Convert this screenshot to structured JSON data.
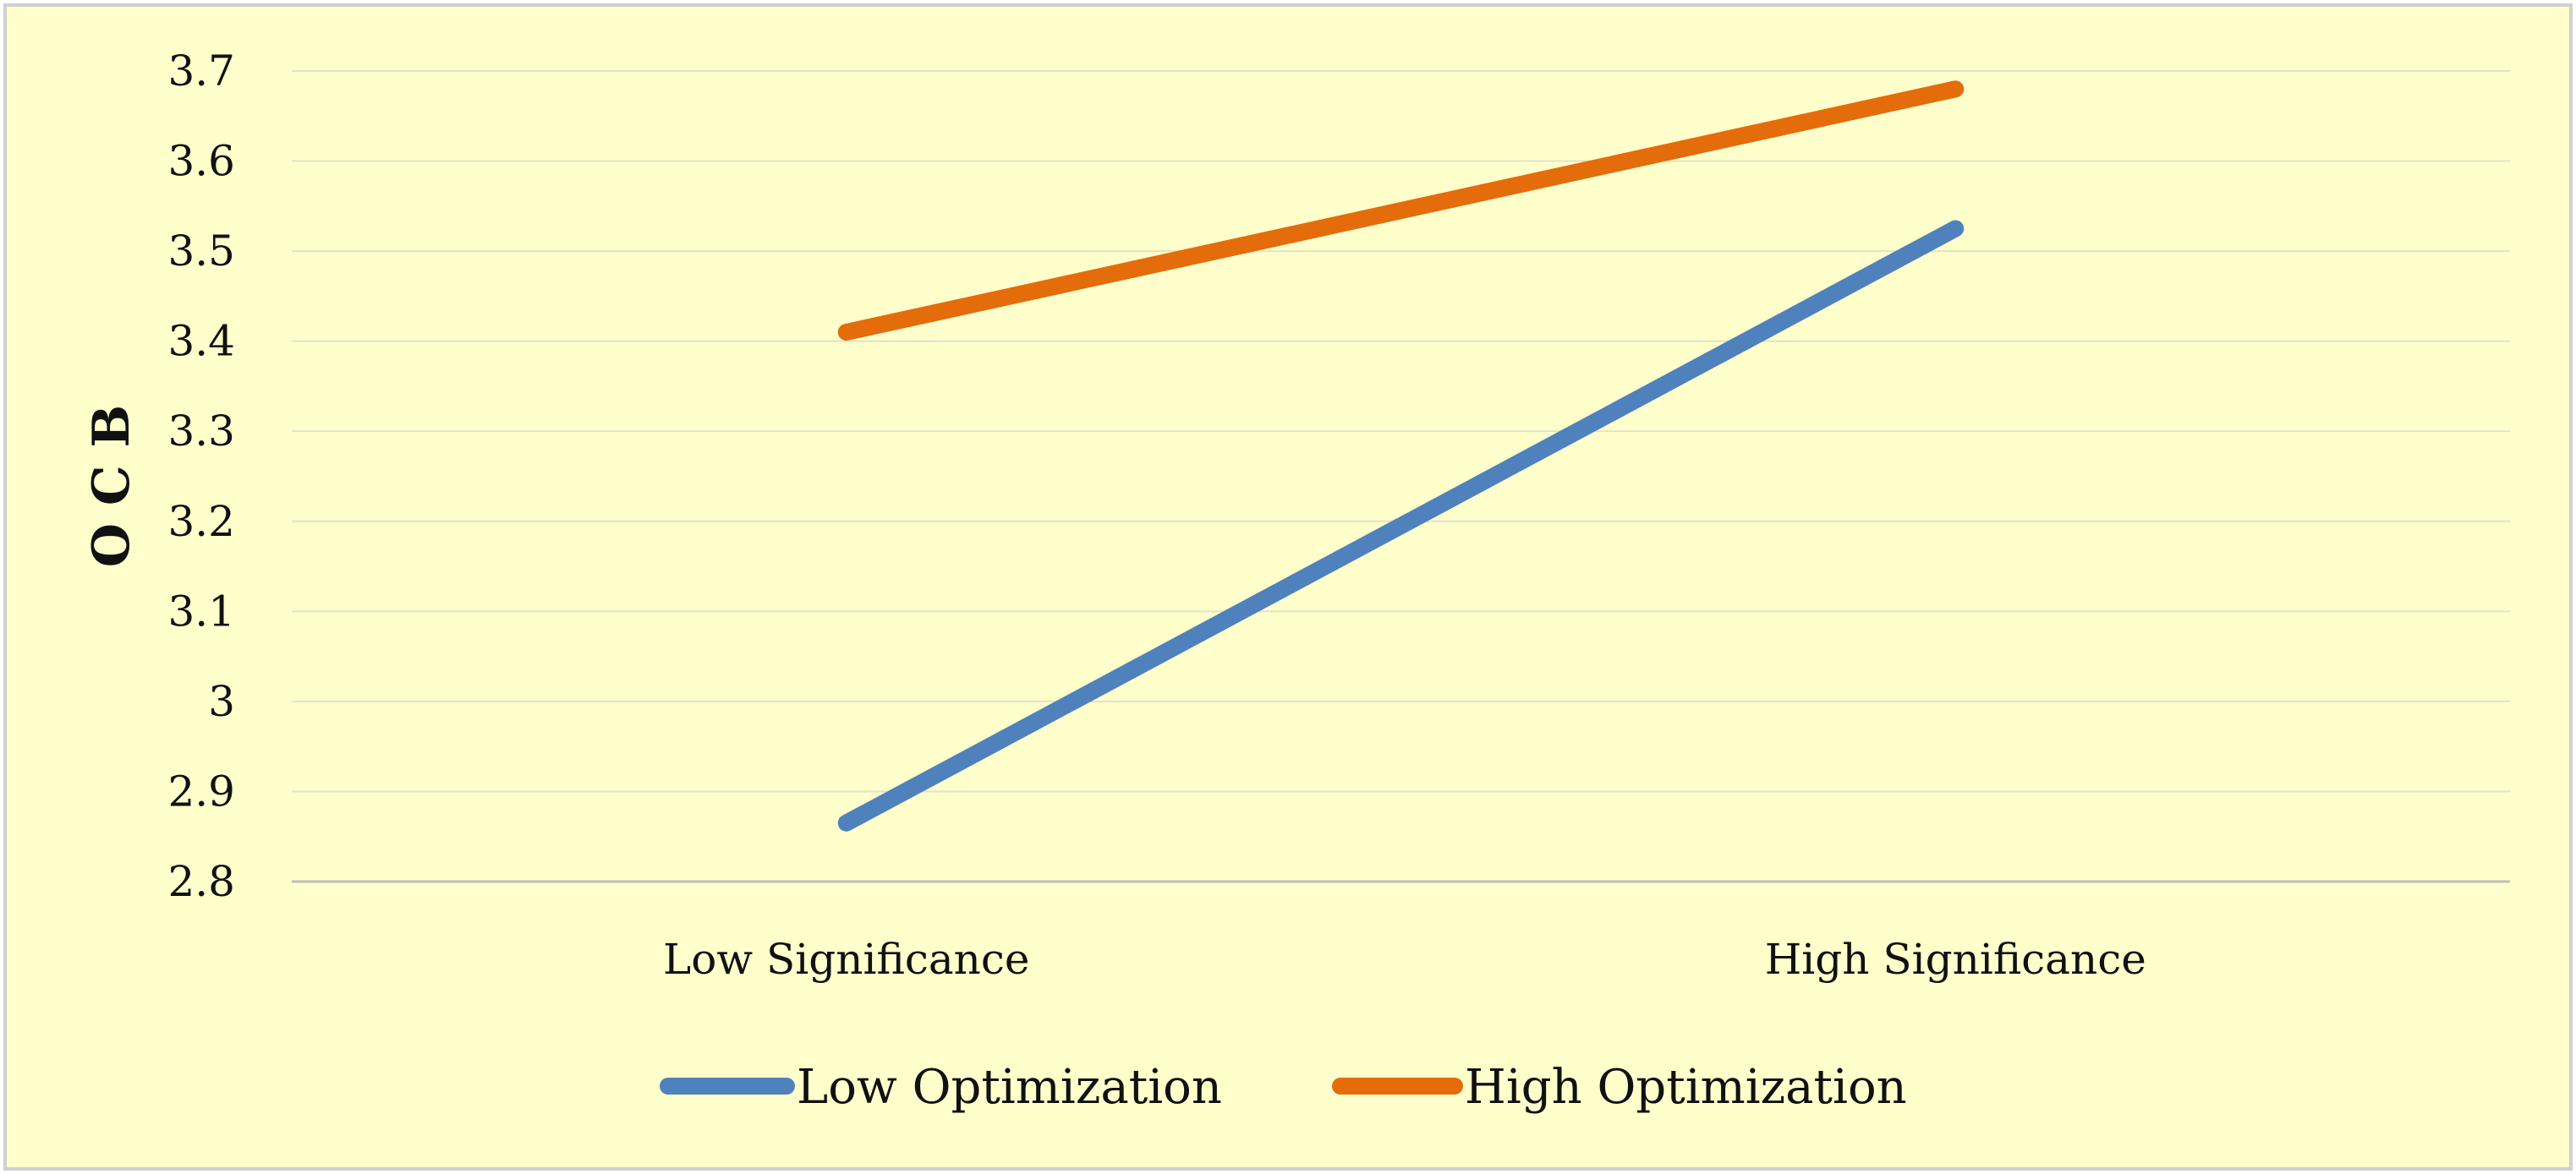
{
  "chart_data": {
    "type": "line",
    "title": "",
    "xlabel": "",
    "ylabel": "O C B",
    "categories": [
      "Low Significance",
      "High Significance"
    ],
    "ylim": [
      2.8,
      3.7
    ],
    "yticks": [
      "2.8",
      "2.9",
      "3",
      "3.1",
      "3.2",
      "3.3",
      "3.4",
      "3.5",
      "3.6",
      "3.7"
    ],
    "grid": true,
    "legend_position": "bottom",
    "background_color": "#FFFFCC",
    "series": [
      {
        "name": "Low Optimization",
        "values": [
          2.865,
          3.525
        ],
        "color": "#4F81BD"
      },
      {
        "name": "High Optimization",
        "values": [
          3.41,
          3.68
        ],
        "color": "#E46C0A"
      }
    ]
  }
}
